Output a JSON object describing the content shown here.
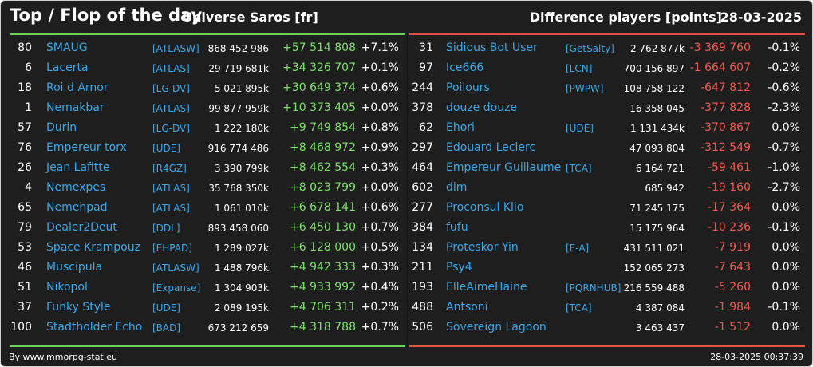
{
  "header": {
    "title": "Top / Flop of the day",
    "universe": "Universe Saros [fr]",
    "difference_label": "Difference players [points]",
    "date": "28-03-2025"
  },
  "colors": {
    "accent_top": "#6fd35a",
    "accent_flop": "#e2544a",
    "link": "#3aa8e8",
    "background": "#1e1e1e"
  },
  "top": [
    {
      "rank": "80",
      "name": "SMAUG",
      "alliance": "[ATLASW]",
      "points": "868 452 986",
      "diff": "+57 514 808",
      "pct": "+7.1%"
    },
    {
      "rank": "6",
      "name": "Lacerta",
      "alliance": "[ATLAS]",
      "points": "29 719 681k",
      "diff": "+34 326 707",
      "pct": "+0.1%"
    },
    {
      "rank": "18",
      "name": "Roi d Arnor",
      "alliance": "[LG-DV]",
      "points": "5 021 895k",
      "diff": "+30 649 374",
      "pct": "+0.6%"
    },
    {
      "rank": "1",
      "name": "Nemakbar",
      "alliance": "[ATLAS]",
      "points": "99 877 959k",
      "diff": "+10 373 405",
      "pct": "+0.0%"
    },
    {
      "rank": "57",
      "name": "Durin",
      "alliance": "[LG-DV]",
      "points": "1 222 180k",
      "diff": "+9 749 854",
      "pct": "+0.8%"
    },
    {
      "rank": "76",
      "name": "Empereur torx",
      "alliance": "[UDE]",
      "points": "916 774 486",
      "diff": "+8 468 972",
      "pct": "+0.9%"
    },
    {
      "rank": "26",
      "name": "Jean Lafitte",
      "alliance": "[R4GZ]",
      "points": "3 390 799k",
      "diff": "+8 462 554",
      "pct": "+0.3%"
    },
    {
      "rank": "4",
      "name": "Nemexpes",
      "alliance": "[ATLAS]",
      "points": "35 768 350k",
      "diff": "+8 023 799",
      "pct": "+0.0%"
    },
    {
      "rank": "65",
      "name": "Nemehpad",
      "alliance": "[ATLAS]",
      "points": "1 061 010k",
      "diff": "+6 678 141",
      "pct": "+0.6%"
    },
    {
      "rank": "79",
      "name": "Dealer2Deut",
      "alliance": "[DDL]",
      "points": "893 458 060",
      "diff": "+6 450 130",
      "pct": "+0.7%"
    },
    {
      "rank": "53",
      "name": "Space Krampouz",
      "alliance": "[EHPAD]",
      "points": "1 289 027k",
      "diff": "+6 128 000",
      "pct": "+0.5%"
    },
    {
      "rank": "46",
      "name": "Muscipula",
      "alliance": "[ATLASW]",
      "points": "1 488 796k",
      "diff": "+4 942 333",
      "pct": "+0.3%"
    },
    {
      "rank": "51",
      "name": "Nikopol",
      "alliance": "[Expanse]",
      "points": "1 304 903k",
      "diff": "+4 933 992",
      "pct": "+0.4%"
    },
    {
      "rank": "37",
      "name": "Funky Style",
      "alliance": "[UDE]",
      "points": "2 089 195k",
      "diff": "+4 706 311",
      "pct": "+0.2%"
    },
    {
      "rank": "100",
      "name": "Stadtholder Echo",
      "alliance": "[BAD]",
      "points": "673 212 659",
      "diff": "+4 318 788",
      "pct": "+0.7%"
    }
  ],
  "flop": [
    {
      "rank": "31",
      "name": "Sidious Bot User",
      "alliance": "[GetSalty]",
      "points": "2 762 877k",
      "diff": "-3 369 760",
      "pct": "-0.1%"
    },
    {
      "rank": "97",
      "name": "Ice666",
      "alliance": "[LCN]",
      "points": "700 156 897",
      "diff": "-1 664 607",
      "pct": "-0.2%"
    },
    {
      "rank": "244",
      "name": "Poilours",
      "alliance": "[PWPW]",
      "points": "108 758 122",
      "diff": "-647 812",
      "pct": "-0.6%"
    },
    {
      "rank": "378",
      "name": "douze douze",
      "alliance": "",
      "points": "16 358 045",
      "diff": "-377 828",
      "pct": "-2.3%"
    },
    {
      "rank": "62",
      "name": "Ehori",
      "alliance": "[UDE]",
      "points": "1 131 434k",
      "diff": "-370 867",
      "pct": "0.0%"
    },
    {
      "rank": "297",
      "name": "Edouard Leclerc",
      "alliance": "",
      "points": "47 093 804",
      "diff": "-312 549",
      "pct": "-0.7%"
    },
    {
      "rank": "464",
      "name": "Empereur Guillaume",
      "alliance": "[TCA]",
      "points": "6 164 721",
      "diff": "-59 461",
      "pct": "-1.0%"
    },
    {
      "rank": "602",
      "name": "dim",
      "alliance": "",
      "points": "685 942",
      "diff": "-19 160",
      "pct": "-2.7%"
    },
    {
      "rank": "277",
      "name": "Proconsul Klio",
      "alliance": "",
      "points": "71 245 175",
      "diff": "-17 364",
      "pct": "0.0%"
    },
    {
      "rank": "384",
      "name": "fufu",
      "alliance": "",
      "points": "15 175 964",
      "diff": "-10 236",
      "pct": "-0.1%"
    },
    {
      "rank": "134",
      "name": "Proteskor Yin",
      "alliance": "[E-A]",
      "points": "431 511 021",
      "diff": "-7 919",
      "pct": "0.0%"
    },
    {
      "rank": "211",
      "name": "Psy4",
      "alliance": "",
      "points": "152 065 273",
      "diff": "-7 643",
      "pct": "0.0%"
    },
    {
      "rank": "193",
      "name": "ElleAimeHaine",
      "alliance": "[PQRNHUB]",
      "points": "216 559 488",
      "diff": "-5 260",
      "pct": "0.0%"
    },
    {
      "rank": "488",
      "name": "Antsoni",
      "alliance": "[TCA]",
      "points": "4 387 084",
      "diff": "-1 984",
      "pct": "-0.1%"
    },
    {
      "rank": "506",
      "name": "Sovereign Lagoon",
      "alliance": "",
      "points": "3 463 437",
      "diff": "-1 512",
      "pct": "0.0%"
    }
  ],
  "footer": {
    "source": "By www.mmorpg-stat.eu",
    "timestamp": "28-03-2025 00:37:39"
  }
}
